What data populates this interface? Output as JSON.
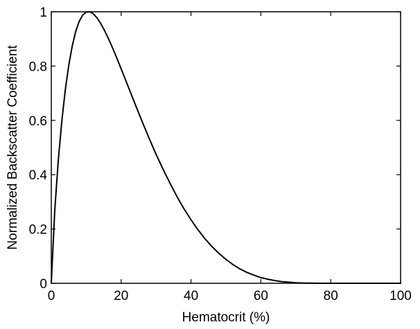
{
  "chart_data": {
    "type": "line",
    "xlabel": "Hematocrit (%)",
    "ylabel": "Normalized Backscatter Coefficient",
    "xlim": [
      0,
      100
    ],
    "ylim": [
      0,
      1
    ],
    "xticks": [
      0,
      20,
      40,
      60,
      80,
      100
    ],
    "yticks": [
      0,
      0.2,
      0.4,
      0.6,
      0.8,
      1
    ],
    "xtick_labels": [
      "0",
      "20",
      "40",
      "60",
      "80",
      "100"
    ],
    "ytick_labels": [
      "0",
      "0.2",
      "0.4",
      "0.6",
      "0.8",
      "1"
    ],
    "grid": false,
    "series": [
      {
        "color": "#000000",
        "x": [
          0,
          1,
          2,
          3,
          4,
          5,
          6,
          7,
          8,
          9,
          10,
          11,
          12,
          13,
          14,
          15,
          16,
          17,
          18,
          19,
          20,
          22,
          24,
          26,
          28,
          30,
          32,
          34,
          36,
          38,
          40,
          42,
          44,
          46,
          48,
          50,
          52,
          54,
          56,
          58,
          60,
          62,
          64,
          66,
          68,
          70,
          72,
          74,
          76,
          78,
          80,
          82,
          84,
          86,
          88,
          90,
          92,
          94,
          96,
          98,
          100
        ],
        "y": [
          0,
          0.27,
          0.452,
          0.595,
          0.711,
          0.803,
          0.874,
          0.928,
          0.965,
          0.988,
          0.999,
          1.0,
          0.993,
          0.979,
          0.96,
          0.937,
          0.911,
          0.883,
          0.853,
          0.822,
          0.79,
          0.725,
          0.66,
          0.596,
          0.534,
          0.475,
          0.42,
          0.368,
          0.319,
          0.274,
          0.234,
          0.197,
          0.164,
          0.135,
          0.11,
          0.088,
          0.069,
          0.053,
          0.04,
          0.03,
          0.021,
          0.015,
          0.01,
          0.006,
          0.004,
          0.002,
          0.001,
          0.0006,
          0.0003,
          0.0001,
          5e-05,
          0,
          0,
          0,
          0,
          0,
          0,
          0,
          0,
          0,
          0
        ]
      }
    ]
  }
}
